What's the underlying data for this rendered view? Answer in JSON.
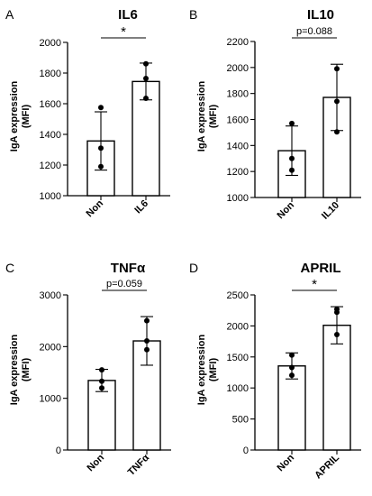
{
  "chart_data": [
    {
      "type": "bar",
      "panel_label": "A",
      "title": "IL6",
      "ylabel": "IgA expression\n(MFI)",
      "categories": [
        "Non",
        "IL6"
      ],
      "values": [
        1357,
        1745
      ],
      "error": [
        190,
        120
      ],
      "points": [
        [
          1575,
          1310,
          1190
        ],
        [
          1860,
          1765,
          1635
        ]
      ],
      "ylim": [
        1000,
        2000
      ],
      "yticks": [
        "1000",
        "1200",
        "1400",
        "1600",
        "1800",
        "2000"
      ],
      "significance": "*"
    },
    {
      "type": "bar",
      "panel_label": "B",
      "title": "IL10",
      "ylabel": "IgA expression\n(MFI)",
      "categories": [
        "Non",
        "IL10"
      ],
      "values": [
        1360,
        1770
      ],
      "error": [
        190,
        255
      ],
      "points": [
        [
          1570,
          1300,
          1210
        ],
        [
          1990,
          1740,
          1505
        ]
      ],
      "ylim": [
        1000,
        2200
      ],
      "yticks": [
        "1000",
        "1200",
        "1400",
        "1600",
        "1800",
        "2000",
        "2200"
      ],
      "significance": "p=0.088"
    },
    {
      "type": "bar",
      "panel_label": "C",
      "title": "TNFα",
      "ylabel": "IgA expression\n(MFI)",
      "categories": [
        "Non",
        "TNFα"
      ],
      "values": [
        1345,
        2110
      ],
      "error": [
        215,
        470
      ],
      "points": [
        [
          1550,
          1330,
          1200
        ],
        [
          2500,
          2110,
          1940
        ]
      ],
      "ylim": [
        0,
        3000
      ],
      "yticks": [
        "0",
        "1000",
        "2000",
        "3000"
      ],
      "significance": "p=0.059"
    },
    {
      "type": "bar",
      "panel_label": "D",
      "title": "APRIL",
      "ylabel": "IgA expression\n(MFI)",
      "categories": [
        "Non",
        "APRIL"
      ],
      "values": [
        1355,
        2010
      ],
      "error": [
        210,
        300
      ],
      "points": [
        [
          1530,
          1330,
          1205
        ],
        [
          2270,
          2220,
          1860
        ]
      ],
      "ylim": [
        0,
        2500
      ],
      "yticks": [
        "0",
        "500",
        "1000",
        "1500",
        "2000",
        "2500"
      ],
      "significance": "*"
    }
  ]
}
